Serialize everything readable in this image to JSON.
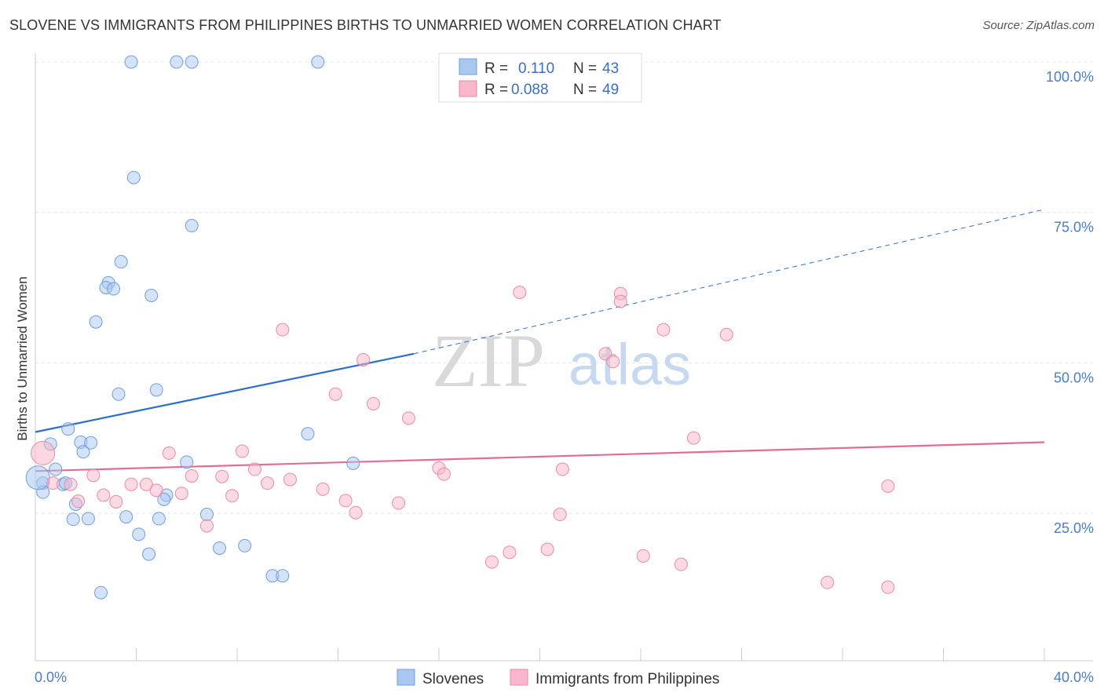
{
  "header": {
    "title": "SLOVENE VS IMMIGRANTS FROM PHILIPPINES BIRTHS TO UNMARRIED WOMEN CORRELATION CHART",
    "source": "Source: ZipAtlas.com"
  },
  "watermark": {
    "part1": "ZIP",
    "part2": "atlas"
  },
  "legend_box": {
    "rows": [
      {
        "r_label": "R =",
        "r_value": "0.110",
        "n_label": "N =",
        "n_value": "43",
        "color": "#a9c8f0"
      },
      {
        "r_label": "R =",
        "r_value": "0.088",
        "n_label": "N =",
        "n_value": "49",
        "color": "#f7b6c9"
      }
    ]
  },
  "chart_data": {
    "type": "scatter",
    "title": "SLOVENE VS IMMIGRANTS FROM PHILIPPINES BIRTHS TO UNMARRIED WOMEN CORRELATION CHART",
    "ylabel": "Births to Unmarried Women",
    "xlabel": "",
    "x_range": [
      0,
      40
    ],
    "y_range": [
      0,
      105
    ],
    "x_tick_labels": [
      "0.0%",
      "40.0%"
    ],
    "y_ticks": [
      {
        "value": 25,
        "label": "25.0%"
      },
      {
        "value": 50,
        "label": "50.0%"
      },
      {
        "value": 75,
        "label": "75.0%"
      },
      {
        "value": 100,
        "label": "100.0%"
      }
    ],
    "grid": true,
    "legend_position": "bottom",
    "series": [
      {
        "name": "Slovenes",
        "color": "#a9c8f0",
        "stroke": "#6f9fdc",
        "trend_color": "#2f6fcb",
        "trend": {
          "x0": 0,
          "y0": 38.5,
          "x1": 15,
          "y1": 51.5,
          "dashed_to": 40,
          "dashed_y": 75.5
        },
        "points": [
          [
            3.8,
            100
          ],
          [
            5.6,
            100
          ],
          [
            6.2,
            100
          ],
          [
            11.2,
            100
          ],
          [
            3.9,
            80.8
          ],
          [
            6.2,
            72.8
          ],
          [
            3.4,
            66.8
          ],
          [
            2.9,
            63.3
          ],
          [
            2.8,
            62.5
          ],
          [
            3.1,
            62.3
          ],
          [
            4.6,
            61.2
          ],
          [
            2.4,
            56.8
          ],
          [
            3.3,
            44.8
          ],
          [
            4.8,
            45.5
          ],
          [
            1.3,
            39.0
          ],
          [
            10.8,
            38.2
          ],
          [
            0.6,
            36.5
          ],
          [
            1.8,
            36.8
          ],
          [
            2.2,
            36.7
          ],
          [
            1.9,
            35.2
          ],
          [
            6.0,
            33.5
          ],
          [
            12.6,
            33.3
          ],
          [
            0.8,
            32.3
          ],
          [
            0.3,
            30.0
          ],
          [
            1.1,
            29.8
          ],
          [
            1.2,
            30.0
          ],
          [
            0.3,
            28.5
          ],
          [
            5.2,
            28.0
          ],
          [
            5.1,
            27.3
          ],
          [
            1.6,
            26.5
          ],
          [
            6.8,
            24.8
          ],
          [
            1.5,
            24.0
          ],
          [
            2.1,
            24.1
          ],
          [
            3.6,
            24.4
          ],
          [
            4.9,
            24.1
          ],
          [
            4.1,
            21.5
          ],
          [
            4.5,
            18.2
          ],
          [
            7.3,
            19.2
          ],
          [
            8.3,
            19.6
          ],
          [
            9.4,
            14.6
          ],
          [
            9.8,
            14.6
          ],
          [
            2.6,
            11.8
          ],
          [
            0.1,
            30.9
          ]
        ]
      },
      {
        "name": "Immigrants from Philippines",
        "color": "#f7b6c9",
        "stroke": "#e98aa8",
        "trend_color": "#e46c94",
        "trend": {
          "x0": 0,
          "y0": 32.0,
          "x1": 40,
          "y1": 36.8
        },
        "points": [
          [
            19.2,
            61.7
          ],
          [
            23.2,
            61.5
          ],
          [
            23.2,
            60.2
          ],
          [
            9.8,
            55.5
          ],
          [
            24.9,
            55.5
          ],
          [
            27.4,
            54.7
          ],
          [
            22.6,
            51.5
          ],
          [
            13.0,
            50.5
          ],
          [
            22.9,
            50.2
          ],
          [
            11.9,
            44.8
          ],
          [
            13.4,
            43.2
          ],
          [
            14.8,
            40.8
          ],
          [
            26.1,
            37.5
          ],
          [
            5.3,
            35.0
          ],
          [
            8.2,
            35.3
          ],
          [
            16.0,
            32.5
          ],
          [
            16.2,
            31.5
          ],
          [
            8.7,
            32.3
          ],
          [
            20.9,
            32.3
          ],
          [
            2.3,
            31.3
          ],
          [
            6.2,
            31.2
          ],
          [
            7.4,
            31.1
          ],
          [
            10.1,
            30.6
          ],
          [
            9.2,
            30.0
          ],
          [
            3.8,
            29.8
          ],
          [
            4.4,
            29.8
          ],
          [
            1.4,
            29.8
          ],
          [
            0.7,
            30.0
          ],
          [
            4.8,
            28.8
          ],
          [
            11.4,
            29.0
          ],
          [
            2.7,
            28.0
          ],
          [
            5.8,
            28.3
          ],
          [
            7.8,
            27.9
          ],
          [
            3.2,
            26.9
          ],
          [
            12.3,
            27.1
          ],
          [
            14.4,
            26.7
          ],
          [
            1.7,
            27.0
          ],
          [
            12.7,
            25.1
          ],
          [
            20.8,
            24.8
          ],
          [
            6.8,
            22.9
          ],
          [
            33.8,
            29.5
          ],
          [
            18.1,
            16.9
          ],
          [
            18.8,
            18.5
          ],
          [
            20.3,
            19.0
          ],
          [
            24.1,
            17.9
          ],
          [
            25.6,
            16.5
          ],
          [
            31.4,
            13.5
          ],
          [
            33.8,
            12.7
          ],
          [
            0.3,
            35.0
          ]
        ]
      }
    ]
  }
}
